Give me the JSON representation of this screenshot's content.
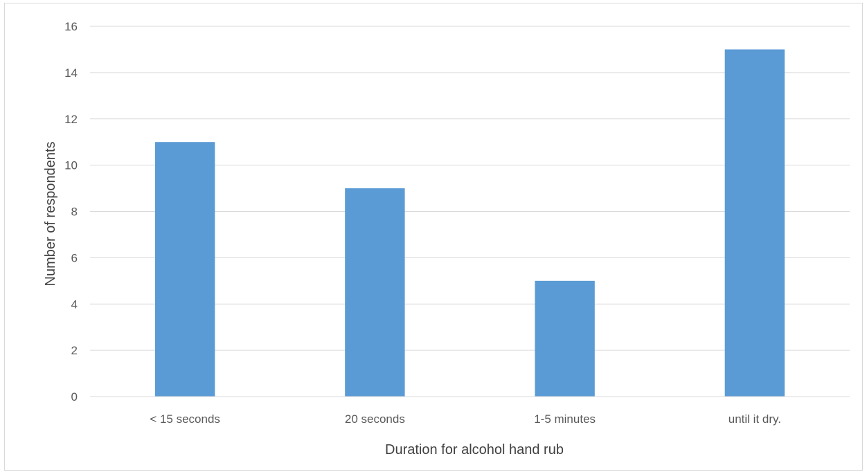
{
  "chart_data": {
    "type": "bar",
    "title": "",
    "xlabel": "Duration for alcohol hand rub",
    "ylabel": "Number of respondents",
    "categories": [
      "< 15 seconds",
      "20 seconds",
      "1-5 minutes",
      "until it dry."
    ],
    "values": [
      11,
      9,
      5,
      15
    ],
    "ylim": [
      0,
      16
    ],
    "yticks": [
      0,
      2,
      4,
      6,
      8,
      10,
      12,
      14,
      16
    ],
    "grid": true,
    "legend": "none",
    "colors": {
      "bar": "#5b9bd5",
      "grid": "#d9d9d9",
      "axis": "#d9d9d9",
      "tick_text": "#595959",
      "title_text": "#404040"
    }
  }
}
